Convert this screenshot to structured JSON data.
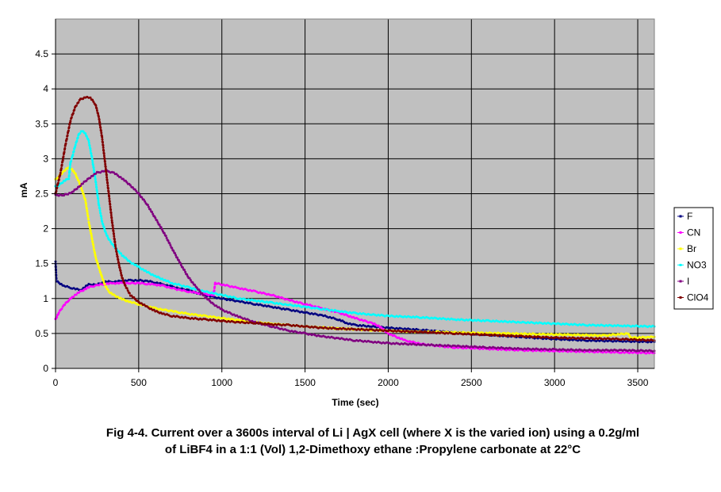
{
  "caption": {
    "line1": "Fig 4-4. Current over a 3600s interval of Li | AgX cell (where X is the varied ion) using a 0.2g/ml",
    "line2": "of LiBF4 in a 1:1 (Vol) 1,2-Dimethoxy ethane :Propylene carbonate at 22°C"
  },
  "chart_data": {
    "type": "scatter",
    "title": "",
    "xlabel": "Time (sec)",
    "ylabel": "mA",
    "xlim": [
      0,
      3600
    ],
    "ylim": [
      0,
      5
    ],
    "xticks": [
      0,
      500,
      1000,
      1500,
      2000,
      2500,
      3000,
      3500
    ],
    "yticks": [
      0,
      0.5,
      1,
      1.5,
      2,
      2.5,
      3,
      3.5,
      4,
      4.5
    ],
    "grid": true,
    "legend_position": "right",
    "plot_background": "#c0c0c0",
    "series": [
      {
        "name": "F",
        "color": "#000080",
        "points": [
          [
            0,
            1.52
          ],
          [
            5,
            1.25
          ],
          [
            50,
            1.18
          ],
          [
            100,
            1.15
          ],
          [
            150,
            1.12
          ],
          [
            200,
            1.2
          ],
          [
            250,
            1.2
          ],
          [
            300,
            1.24
          ],
          [
            350,
            1.24
          ],
          [
            400,
            1.25
          ],
          [
            450,
            1.26
          ],
          [
            500,
            1.26
          ],
          [
            550,
            1.25
          ],
          [
            600,
            1.23
          ],
          [
            650,
            1.2
          ],
          [
            700,
            1.17
          ],
          [
            750,
            1.14
          ],
          [
            800,
            1.12
          ],
          [
            850,
            1.08
          ],
          [
            900,
            1.05
          ],
          [
            950,
            1.02
          ],
          [
            1000,
            1.0
          ],
          [
            1100,
            0.96
          ],
          [
            1200,
            0.92
          ],
          [
            1300,
            0.88
          ],
          [
            1400,
            0.84
          ],
          [
            1500,
            0.8
          ],
          [
            1600,
            0.76
          ],
          [
            1700,
            0.7
          ],
          [
            1750,
            0.65
          ],
          [
            1800,
            0.62
          ],
          [
            1900,
            0.6
          ],
          [
            2000,
            0.58
          ],
          [
            2200,
            0.55
          ],
          [
            2400,
            0.51
          ],
          [
            2600,
            0.48
          ],
          [
            2800,
            0.45
          ],
          [
            3000,
            0.42
          ],
          [
            3200,
            0.4
          ],
          [
            3400,
            0.39
          ],
          [
            3600,
            0.38
          ]
        ]
      },
      {
        "name": "CN",
        "color": "#ff00ff",
        "points": [
          [
            0,
            0.7
          ],
          [
            20,
            0.8
          ],
          [
            50,
            0.9
          ],
          [
            80,
            0.98
          ],
          [
            100,
            1.02
          ],
          [
            150,
            1.1
          ],
          [
            200,
            1.16
          ],
          [
            250,
            1.19
          ],
          [
            300,
            1.21
          ],
          [
            350,
            1.22
          ],
          [
            400,
            1.22
          ],
          [
            450,
            1.22
          ],
          [
            500,
            1.22
          ],
          [
            550,
            1.21
          ],
          [
            600,
            1.2
          ],
          [
            650,
            1.18
          ],
          [
            700,
            1.15
          ],
          [
            750,
            1.12
          ],
          [
            800,
            1.1
          ],
          [
            850,
            1.08
          ],
          [
            900,
            1.06
          ],
          [
            950,
            1.05
          ],
          [
            960,
            1.22
          ],
          [
            1000,
            1.2
          ],
          [
            1100,
            1.15
          ],
          [
            1200,
            1.1
          ],
          [
            1300,
            1.05
          ],
          [
            1400,
            0.98
          ],
          [
            1500,
            0.92
          ],
          [
            1600,
            0.86
          ],
          [
            1700,
            0.8
          ],
          [
            1800,
            0.72
          ],
          [
            1900,
            0.65
          ],
          [
            1950,
            0.6
          ],
          [
            2000,
            0.5
          ],
          [
            2100,
            0.4
          ],
          [
            2200,
            0.35
          ],
          [
            2300,
            0.32
          ],
          [
            2400,
            0.3
          ],
          [
            2600,
            0.28
          ],
          [
            2800,
            0.26
          ],
          [
            3000,
            0.25
          ],
          [
            3200,
            0.24
          ],
          [
            3400,
            0.23
          ],
          [
            3600,
            0.22
          ]
        ]
      },
      {
        "name": "Br",
        "color": "#ffff00",
        "points": [
          [
            0,
            2.7
          ],
          [
            20,
            2.75
          ],
          [
            50,
            2.82
          ],
          [
            80,
            2.88
          ],
          [
            100,
            2.85
          ],
          [
            120,
            2.78
          ],
          [
            150,
            2.62
          ],
          [
            180,
            2.4
          ],
          [
            200,
            2.1
          ],
          [
            220,
            1.85
          ],
          [
            240,
            1.6
          ],
          [
            260,
            1.45
          ],
          [
            280,
            1.3
          ],
          [
            300,
            1.18
          ],
          [
            320,
            1.1
          ],
          [
            350,
            1.05
          ],
          [
            400,
            0.99
          ],
          [
            450,
            0.95
          ],
          [
            500,
            0.92
          ],
          [
            550,
            0.89
          ],
          [
            600,
            0.86
          ],
          [
            650,
            0.84
          ],
          [
            700,
            0.82
          ],
          [
            750,
            0.8
          ],
          [
            800,
            0.78
          ],
          [
            900,
            0.75
          ],
          [
            1000,
            0.72
          ],
          [
            1100,
            0.69
          ],
          [
            1200,
            0.66
          ],
          [
            1300,
            0.64
          ],
          [
            1400,
            0.62
          ],
          [
            1500,
            0.6
          ],
          [
            1700,
            0.57
          ],
          [
            1900,
            0.55
          ],
          [
            2100,
            0.53
          ],
          [
            2300,
            0.52
          ],
          [
            2500,
            0.51
          ],
          [
            2700,
            0.5
          ],
          [
            2900,
            0.49
          ],
          [
            3100,
            0.48
          ],
          [
            3300,
            0.47
          ],
          [
            3440,
            0.5
          ],
          [
            3460,
            0.44
          ],
          [
            3600,
            0.45
          ]
        ]
      },
      {
        "name": "NO3",
        "color": "#00ffff",
        "points": [
          [
            0,
            2.6
          ],
          [
            20,
            2.62
          ],
          [
            50,
            2.68
          ],
          [
            80,
            2.72
          ],
          [
            90,
            2.95
          ],
          [
            100,
            3.02
          ],
          [
            120,
            3.2
          ],
          [
            140,
            3.35
          ],
          [
            160,
            3.4
          ],
          [
            180,
            3.36
          ],
          [
            200,
            3.25
          ],
          [
            220,
            3.0
          ],
          [
            240,
            2.7
          ],
          [
            260,
            2.35
          ],
          [
            280,
            2.1
          ],
          [
            300,
            1.95
          ],
          [
            320,
            1.85
          ],
          [
            350,
            1.75
          ],
          [
            400,
            1.62
          ],
          [
            450,
            1.52
          ],
          [
            500,
            1.45
          ],
          [
            550,
            1.38
          ],
          [
            600,
            1.32
          ],
          [
            650,
            1.27
          ],
          [
            700,
            1.22
          ],
          [
            800,
            1.16
          ],
          [
            900,
            1.1
          ],
          [
            1000,
            1.05
          ],
          [
            1100,
            1.0
          ],
          [
            1200,
            0.97
          ],
          [
            1300,
            0.94
          ],
          [
            1400,
            0.91
          ],
          [
            1500,
            0.88
          ],
          [
            1600,
            0.85
          ],
          [
            1700,
            0.82
          ],
          [
            1800,
            0.79
          ],
          [
            1900,
            0.77
          ],
          [
            2000,
            0.75
          ],
          [
            2200,
            0.73
          ],
          [
            2400,
            0.7
          ],
          [
            2600,
            0.68
          ],
          [
            2800,
            0.66
          ],
          [
            3000,
            0.64
          ],
          [
            3200,
            0.62
          ],
          [
            3400,
            0.61
          ],
          [
            3600,
            0.6
          ]
        ]
      },
      {
        "name": "I",
        "color": "#800080",
        "points": [
          [
            0,
            2.48
          ],
          [
            50,
            2.48
          ],
          [
            100,
            2.52
          ],
          [
            150,
            2.62
          ],
          [
            200,
            2.72
          ],
          [
            250,
            2.8
          ],
          [
            300,
            2.83
          ],
          [
            350,
            2.8
          ],
          [
            400,
            2.72
          ],
          [
            450,
            2.62
          ],
          [
            500,
            2.5
          ],
          [
            550,
            2.35
          ],
          [
            600,
            2.15
          ],
          [
            650,
            1.95
          ],
          [
            700,
            1.72
          ],
          [
            750,
            1.5
          ],
          [
            800,
            1.3
          ],
          [
            850,
            1.15
          ],
          [
            900,
            1.02
          ],
          [
            950,
            0.92
          ],
          [
            1000,
            0.84
          ],
          [
            1100,
            0.74
          ],
          [
            1200,
            0.66
          ],
          [
            1300,
            0.6
          ],
          [
            1400,
            0.54
          ],
          [
            1500,
            0.5
          ],
          [
            1600,
            0.46
          ],
          [
            1700,
            0.43
          ],
          [
            1800,
            0.4
          ],
          [
            1900,
            0.38
          ],
          [
            2000,
            0.36
          ],
          [
            2200,
            0.34
          ],
          [
            2400,
            0.32
          ],
          [
            2600,
            0.3
          ],
          [
            2800,
            0.28
          ],
          [
            3000,
            0.27
          ],
          [
            3200,
            0.26
          ],
          [
            3400,
            0.26
          ],
          [
            3600,
            0.25
          ]
        ]
      },
      {
        "name": "ClO4",
        "color": "#800000",
        "points": [
          [
            0,
            2.5
          ],
          [
            30,
            2.8
          ],
          [
            60,
            3.2
          ],
          [
            90,
            3.55
          ],
          [
            120,
            3.75
          ],
          [
            150,
            3.85
          ],
          [
            180,
            3.88
          ],
          [
            210,
            3.87
          ],
          [
            240,
            3.78
          ],
          [
            260,
            3.6
          ],
          [
            280,
            3.3
          ],
          [
            300,
            2.9
          ],
          [
            320,
            2.5
          ],
          [
            340,
            2.1
          ],
          [
            360,
            1.75
          ],
          [
            380,
            1.5
          ],
          [
            400,
            1.3
          ],
          [
            420,
            1.18
          ],
          [
            450,
            1.05
          ],
          [
            500,
            0.95
          ],
          [
            550,
            0.88
          ],
          [
            600,
            0.82
          ],
          [
            650,
            0.78
          ],
          [
            700,
            0.75
          ],
          [
            800,
            0.72
          ],
          [
            900,
            0.7
          ],
          [
            1000,
            0.68
          ],
          [
            1100,
            0.66
          ],
          [
            1200,
            0.65
          ],
          [
            1300,
            0.63
          ],
          [
            1400,
            0.62
          ],
          [
            1500,
            0.6
          ],
          [
            1600,
            0.58
          ],
          [
            1700,
            0.57
          ],
          [
            1800,
            0.56
          ],
          [
            1900,
            0.55
          ],
          [
            2000,
            0.54
          ],
          [
            2200,
            0.52
          ],
          [
            2400,
            0.5
          ],
          [
            2600,
            0.48
          ],
          [
            2800,
            0.46
          ],
          [
            3000,
            0.44
          ],
          [
            3200,
            0.43
          ],
          [
            3400,
            0.42
          ],
          [
            3600,
            0.4
          ]
        ]
      }
    ]
  }
}
